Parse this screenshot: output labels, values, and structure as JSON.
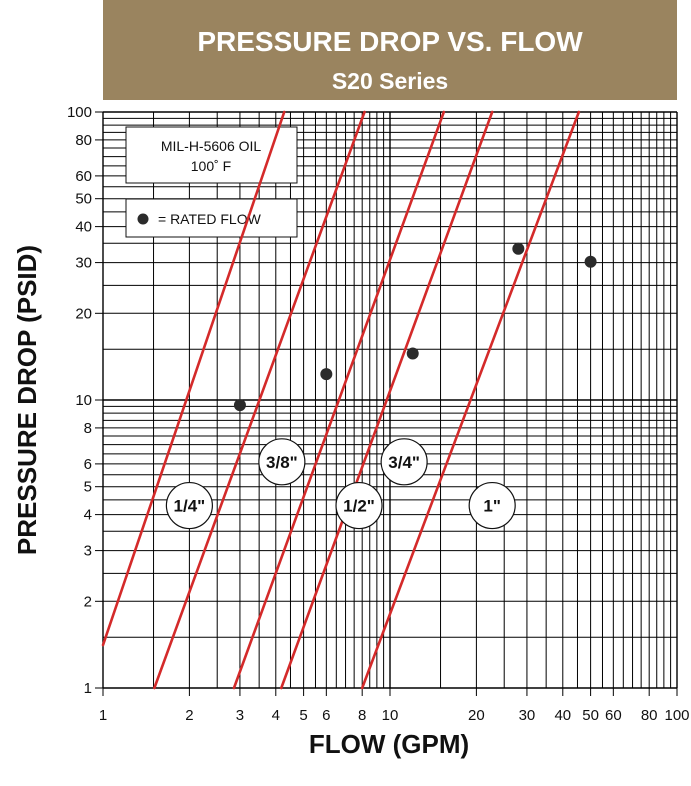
{
  "chart_data": {
    "type": "line",
    "title": "PRESSURE DROP VS. FLOW",
    "subtitle": "S20 Series",
    "xlabel": "FLOW (GPM)",
    "ylabel": "PRESSURE DROP (PSID)",
    "xscale": "log",
    "yscale": "log",
    "xlim": [
      1,
      100
    ],
    "ylim": [
      1,
      100
    ],
    "grid": true,
    "x_tick_labels": [
      "1",
      "2",
      "3",
      "4",
      "5",
      "6",
      "8",
      "10",
      "20",
      "30",
      "40",
      "50",
      "60",
      "80",
      "100"
    ],
    "y_tick_labels": [
      "1",
      "2",
      "3",
      "4",
      "5",
      "6",
      "8",
      "10",
      "20",
      "30",
      "40",
      "50",
      "60",
      "80",
      "100"
    ],
    "series": [
      {
        "name": "1/4\"",
        "x": [
          1.0,
          4.28
        ],
        "y": [
          1.41,
          100
        ],
        "rated_flow": {
          "x": 3,
          "y": 9.6
        }
      },
      {
        "name": "3/8\"",
        "x": [
          1.51,
          8.15
        ],
        "y": [
          1.0,
          100
        ],
        "rated_flow": {
          "x": 6,
          "y": 12.3
        }
      },
      {
        "name": "1/2\"",
        "x": [
          2.86,
          15.4
        ],
        "y": [
          1.0,
          100
        ],
        "rated_flow": {
          "x": 12,
          "y": 14.5
        }
      },
      {
        "name": "3/4\"",
        "x": [
          4.18,
          22.7
        ],
        "y": [
          1.0,
          100
        ],
        "rated_flow": {
          "x": 28,
          "y": 33.5
        }
      },
      {
        "name": "1\"",
        "x": [
          8.0,
          45.5
        ],
        "y": [
          1.0,
          100
        ],
        "rated_flow": {
          "x": 50,
          "y": 30.2
        }
      }
    ],
    "annotations": {
      "fluid": [
        "MIL-H-5606 OIL",
        "100˚ F"
      ],
      "legend_marker_label": "= RATED FLOW"
    },
    "colors": {
      "line": "#d42a2a",
      "header": "#9a845f",
      "grid": "#000000"
    }
  }
}
